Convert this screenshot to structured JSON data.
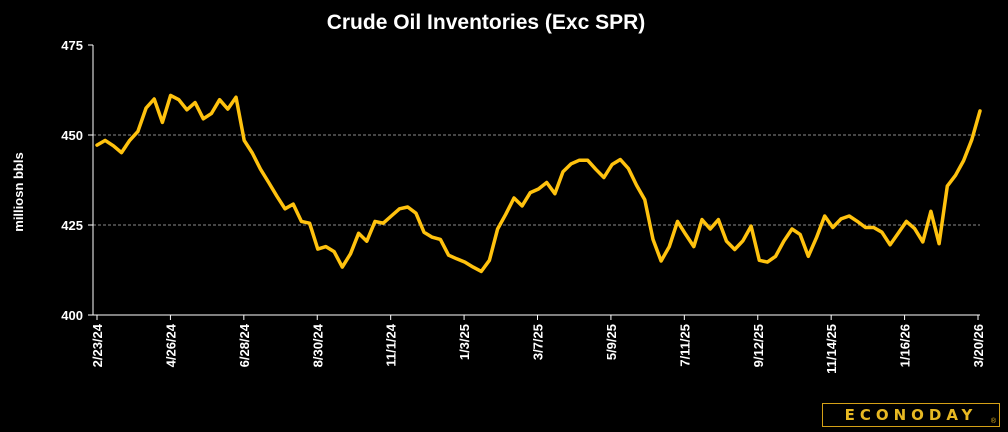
{
  "chart_data": {
    "type": "line",
    "title": "Crude Oil Inventories (Exc SPR)",
    "ylabel": "milliosn bbls",
    "ylim": [
      400,
      475
    ],
    "yticks": [
      400,
      425,
      450,
      475
    ],
    "grid_lines_y": [
      425,
      450
    ],
    "x_tick_labels": [
      "2/23/24",
      "4/26/24",
      "6/28/24",
      "8/30/24",
      "11/1/24",
      "1/3/25",
      "3/7/25",
      "5/9/25",
      "7/11/25",
      "9/12/25",
      "11/14/25",
      "1/16/26",
      "3/20/26"
    ],
    "line_color": "#ffc20e",
    "series": [
      {
        "values": [
          447.2,
          448.5,
          447.0,
          445.1,
          448.5,
          451.0,
          457.5,
          460.0,
          453.5,
          461.0,
          459.8,
          457.0,
          459.0,
          454.5,
          456.0,
          459.8,
          457.2,
          460.5,
          448.5,
          445.0,
          440.5,
          436.8,
          433.0,
          429.5,
          430.8,
          426.0,
          425.5,
          418.3,
          419.0,
          417.6,
          413.3,
          417.0,
          422.7,
          420.5,
          426.0,
          425.5,
          427.5,
          429.5,
          430.0,
          428.3,
          423.0,
          421.6,
          421.0,
          416.6,
          415.6,
          414.7,
          413.3,
          412.1,
          415.2,
          423.9,
          428.0,
          432.5,
          430.3,
          434.0,
          435.0,
          436.8,
          433.7,
          439.8,
          442.0,
          443.0,
          443.0,
          440.5,
          438.2,
          441.8,
          443.2,
          440.7,
          436.0,
          432.0,
          421.0,
          415.0,
          419.0,
          426.0,
          422.4,
          419.0,
          426.5,
          423.9,
          426.5,
          420.5,
          418.2,
          420.6,
          424.7,
          415.2,
          414.7,
          416.3,
          420.5,
          423.9,
          422.4,
          416.3,
          421.5,
          427.5,
          424.3,
          426.7,
          427.5,
          426.0,
          424.3,
          424.3,
          423.0,
          419.5,
          422.7,
          426.0,
          424.0,
          420.3,
          428.8,
          419.8,
          435.8,
          438.8,
          442.9,
          448.7,
          456.7
        ]
      }
    ],
    "brand": "ECONODAY",
    "brand_mark": "®"
  }
}
